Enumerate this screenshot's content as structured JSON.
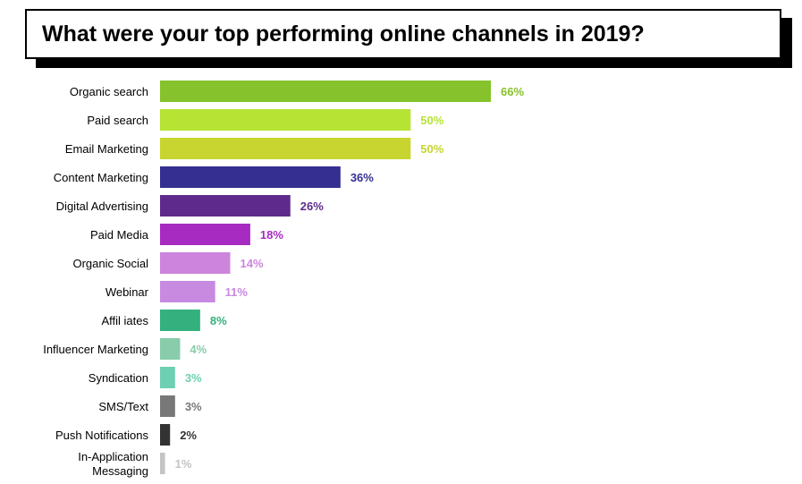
{
  "chart_data": {
    "type": "bar",
    "orientation": "horizontal",
    "title": "What were your top performing online channels in 2019?",
    "categories": [
      "Organic search",
      "Paid search",
      "Email Marketing",
      "Content Marketing",
      "Digital Advertising",
      "Paid Media",
      "Organic Social",
      "Webinar",
      "Affil iates",
      "Influencer Marketing",
      "Syndication",
      "SMS/Text",
      "Push Notifications",
      [
        "In-Application",
        "Messaging"
      ]
    ],
    "values": [
      66,
      50,
      50,
      36,
      26,
      18,
      14,
      11,
      8,
      4,
      3,
      3,
      2,
      1
    ],
    "value_labels": [
      "66%",
      "50%",
      "50%",
      "36%",
      "26%",
      "18%",
      "14%",
      "11%",
      "8%",
      "4%",
      "3%",
      "3%",
      "2%",
      "1%"
    ],
    "colors": [
      "#86c22c",
      "#b6e334",
      "#c8d530",
      "#342f90",
      "#5e2b8c",
      "#a72bc0",
      "#cc84dc",
      "#c78ae0",
      "#34b07f",
      "#88ccab",
      "#6dd0b3",
      "#787878",
      "#333333",
      "#c4c4c4"
    ],
    "xlim": [
      0,
      66
    ],
    "grid": false,
    "legend": "none"
  }
}
